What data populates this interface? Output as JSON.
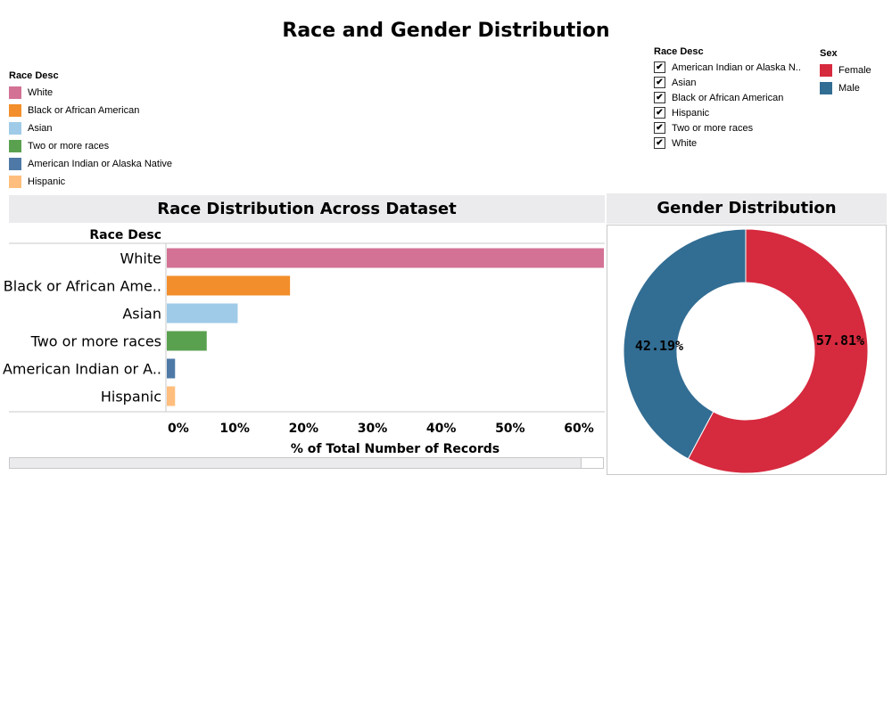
{
  "title": "Race and Gender Distribution",
  "race_legend": {
    "title": "Race Desc",
    "items": [
      {
        "label": "White",
        "color": "#d37295"
      },
      {
        "label": "Black or African American",
        "color": "#f28e2b"
      },
      {
        "label": "Asian",
        "color": "#a0cbe8"
      },
      {
        "label": "Two or more races",
        "color": "#59a14f"
      },
      {
        "label": "American Indian or Alaska Native",
        "color": "#4e79a7"
      },
      {
        "label": "Hispanic",
        "color": "#ffbe7d"
      }
    ]
  },
  "race_filter": {
    "title": "Race Desc",
    "items": [
      {
        "label": "American Indian or Alaska N..",
        "checked": true
      },
      {
        "label": "Asian",
        "checked": true
      },
      {
        "label": "Black or African American",
        "checked": true
      },
      {
        "label": "Hispanic",
        "checked": true
      },
      {
        "label": "Two or more races",
        "checked": true
      },
      {
        "label": "White",
        "checked": true
      }
    ]
  },
  "sex_legend": {
    "title": "Sex",
    "items": [
      {
        "label": "Female",
        "color": "#d62a3e"
      },
      {
        "label": "Male",
        "color": "#326d93"
      }
    ]
  },
  "chart_data": [
    {
      "type": "bar",
      "orientation": "horizontal",
      "title": "Race Distribution Across Dataset",
      "row_header": "Race Desc",
      "xlabel": "% of Total Number of Records",
      "categories": [
        "White",
        "Black or African Ame..",
        "Asian",
        "Two or more races",
        "American Indian or A..",
        "Hispanic"
      ],
      "values": [
        63.5,
        17.9,
        10.3,
        5.8,
        1.2,
        1.2
      ],
      "colors": [
        "#d37295",
        "#f28e2b",
        "#a0cbe8",
        "#59a14f",
        "#4e79a7",
        "#ffbe7d"
      ],
      "xticks": [
        "0%",
        "10%",
        "20%",
        "30%",
        "40%",
        "50%",
        "60%"
      ],
      "xlim": [
        0,
        63.5
      ]
    },
    {
      "type": "pie",
      "subtype": "donut",
      "title": "Gender Distribution",
      "categories": [
        "Female",
        "Male"
      ],
      "values": [
        57.81,
        42.19
      ],
      "labels": [
        "57.81%",
        "42.19%"
      ],
      "colors": [
        "#d62a3e",
        "#326d93"
      ]
    }
  ]
}
